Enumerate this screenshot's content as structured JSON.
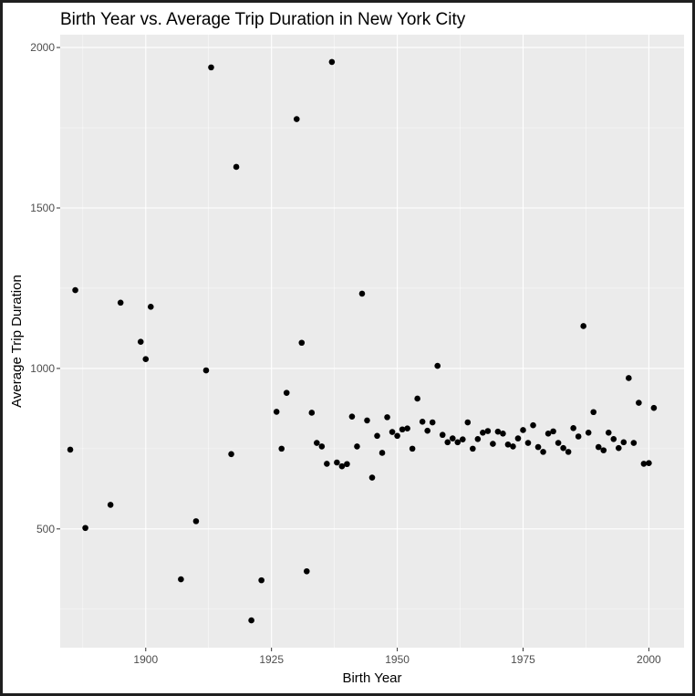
{
  "chart_data": {
    "type": "scatter",
    "title": "Birth Year vs. Average Trip Duration in New York City",
    "xlabel": "Birth Year",
    "ylabel": "Average Trip Duration",
    "xlim": [
      1883,
      2007
    ],
    "ylim": [
      130,
      2040
    ],
    "x_ticks": [
      1900,
      1925,
      1950,
      1975,
      2000
    ],
    "y_ticks": [
      500,
      1000,
      1500,
      2000
    ],
    "x_tick_labels": [
      "1900",
      "1925",
      "1950",
      "1975",
      "2000"
    ],
    "y_tick_labels": [
      "500",
      "1000",
      "1500",
      "2000"
    ],
    "grid": true,
    "colors": {
      "panel": "#ebebeb",
      "grid_major": "#ffffff",
      "point": "#000000"
    },
    "points": [
      {
        "x": 1885,
        "y": 747
      },
      {
        "x": 1886,
        "y": 1244
      },
      {
        "x": 1888,
        "y": 503
      },
      {
        "x": 1893,
        "y": 575
      },
      {
        "x": 1895,
        "y": 1205
      },
      {
        "x": 1899,
        "y": 1083
      },
      {
        "x": 1900,
        "y": 1029
      },
      {
        "x": 1901,
        "y": 1192
      },
      {
        "x": 1907,
        "y": 343
      },
      {
        "x": 1910,
        "y": 524
      },
      {
        "x": 1912,
        "y": 994
      },
      {
        "x": 1913,
        "y": 1938
      },
      {
        "x": 1917,
        "y": 733
      },
      {
        "x": 1918,
        "y": 1628
      },
      {
        "x": 1921,
        "y": 215
      },
      {
        "x": 1923,
        "y": 340
      },
      {
        "x": 1926,
        "y": 865
      },
      {
        "x": 1927,
        "y": 750
      },
      {
        "x": 1928,
        "y": 924
      },
      {
        "x": 1930,
        "y": 1777
      },
      {
        "x": 1931,
        "y": 1080
      },
      {
        "x": 1932,
        "y": 368
      },
      {
        "x": 1933,
        "y": 862
      },
      {
        "x": 1934,
        "y": 768
      },
      {
        "x": 1935,
        "y": 757
      },
      {
        "x": 1936,
        "y": 703
      },
      {
        "x": 1937,
        "y": 1955
      },
      {
        "x": 1938,
        "y": 707
      },
      {
        "x": 1939,
        "y": 695
      },
      {
        "x": 1940,
        "y": 702
      },
      {
        "x": 1941,
        "y": 850
      },
      {
        "x": 1942,
        "y": 757
      },
      {
        "x": 1943,
        "y": 1233
      },
      {
        "x": 1944,
        "y": 838
      },
      {
        "x": 1945,
        "y": 660
      },
      {
        "x": 1946,
        "y": 790
      },
      {
        "x": 1947,
        "y": 737
      },
      {
        "x": 1948,
        "y": 848
      },
      {
        "x": 1949,
        "y": 802
      },
      {
        "x": 1950,
        "y": 790
      },
      {
        "x": 1951,
        "y": 810
      },
      {
        "x": 1952,
        "y": 813
      },
      {
        "x": 1953,
        "y": 750
      },
      {
        "x": 1954,
        "y": 906
      },
      {
        "x": 1955,
        "y": 834
      },
      {
        "x": 1956,
        "y": 806
      },
      {
        "x": 1957,
        "y": 832
      },
      {
        "x": 1958,
        "y": 1008
      },
      {
        "x": 1959,
        "y": 793
      },
      {
        "x": 1960,
        "y": 770
      },
      {
        "x": 1961,
        "y": 782
      },
      {
        "x": 1962,
        "y": 770
      },
      {
        "x": 1963,
        "y": 779
      },
      {
        "x": 1964,
        "y": 832
      },
      {
        "x": 1965,
        "y": 750
      },
      {
        "x": 1966,
        "y": 780
      },
      {
        "x": 1967,
        "y": 800
      },
      {
        "x": 1968,
        "y": 805
      },
      {
        "x": 1969,
        "y": 765
      },
      {
        "x": 1970,
        "y": 803
      },
      {
        "x": 1971,
        "y": 797
      },
      {
        "x": 1972,
        "y": 763
      },
      {
        "x": 1973,
        "y": 757
      },
      {
        "x": 1974,
        "y": 782
      },
      {
        "x": 1975,
        "y": 808
      },
      {
        "x": 1976,
        "y": 768
      },
      {
        "x": 1977,
        "y": 823
      },
      {
        "x": 1978,
        "y": 755
      },
      {
        "x": 1979,
        "y": 740
      },
      {
        "x": 1980,
        "y": 797
      },
      {
        "x": 1981,
        "y": 804
      },
      {
        "x": 1982,
        "y": 768
      },
      {
        "x": 1983,
        "y": 752
      },
      {
        "x": 1984,
        "y": 740
      },
      {
        "x": 1985,
        "y": 814
      },
      {
        "x": 1986,
        "y": 788
      },
      {
        "x": 1987,
        "y": 1132
      },
      {
        "x": 1988,
        "y": 800
      },
      {
        "x": 1989,
        "y": 864
      },
      {
        "x": 1990,
        "y": 755
      },
      {
        "x": 1991,
        "y": 745
      },
      {
        "x": 1992,
        "y": 800
      },
      {
        "x": 1993,
        "y": 780
      },
      {
        "x": 1994,
        "y": 752
      },
      {
        "x": 1995,
        "y": 770
      },
      {
        "x": 1996,
        "y": 970
      },
      {
        "x": 1997,
        "y": 768
      },
      {
        "x": 1998,
        "y": 893
      },
      {
        "x": 1999,
        "y": 703
      },
      {
        "x": 2000,
        "y": 705
      },
      {
        "x": 2001,
        "y": 877
      }
    ]
  }
}
